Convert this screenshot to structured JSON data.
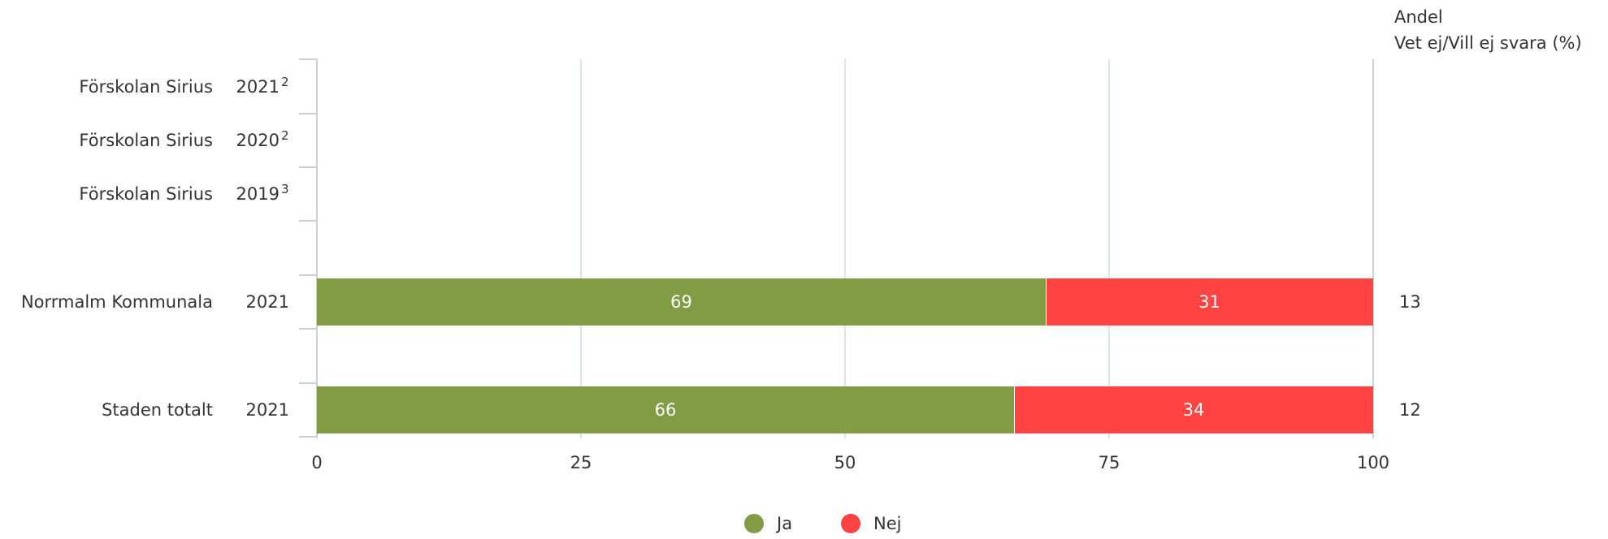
{
  "chart_data": {
    "type": "bar",
    "stacked": true,
    "orientation": "horizontal",
    "title": "",
    "xlabel": "",
    "ylabel": "",
    "xlim": [
      0,
      100
    ],
    "x_ticks": [
      "0",
      "25",
      "50",
      "75",
      "100"
    ],
    "grid": true,
    "legend_position": "bottom",
    "extra_column_header": [
      "Andel",
      "Vet ej/Vill ej svara (%)"
    ],
    "rows": [
      {
        "name": "Förskolan Sirius",
        "year": "2021",
        "sup": "2",
        "ja": null,
        "nej": null,
        "andel": ""
      },
      {
        "name": "Förskolan Sirius",
        "year": "2020",
        "sup": "2",
        "ja": null,
        "nej": null,
        "andel": ""
      },
      {
        "name": "Förskolan Sirius",
        "year": "2019",
        "sup": "3",
        "ja": null,
        "nej": null,
        "andel": ""
      },
      {
        "name": "Norrmalm Kommunala",
        "year": "2021",
        "sup": "",
        "ja": 69,
        "nej": 31,
        "andel": "13"
      },
      {
        "name": "Staden totalt",
        "year": "2021",
        "sup": "",
        "ja": 66,
        "nej": 34,
        "andel": "12"
      }
    ],
    "series": [
      {
        "name": "Ja",
        "color": "#819c43"
      },
      {
        "name": "Nej",
        "color": "#ff4242"
      }
    ]
  }
}
